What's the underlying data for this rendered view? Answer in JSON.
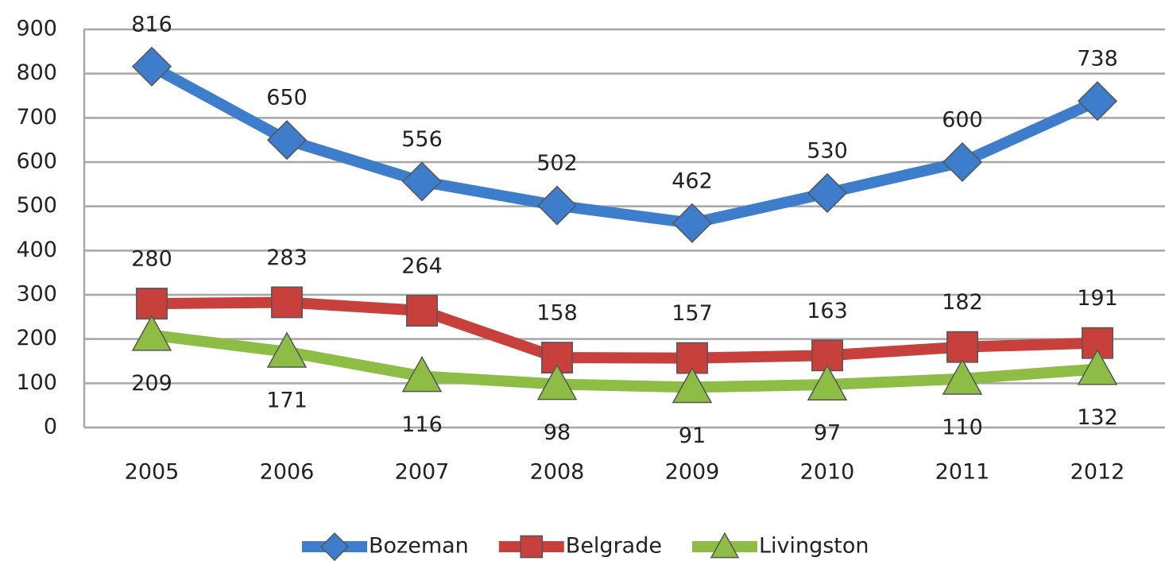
{
  "chart_data": {
    "type": "line",
    "categories": [
      "2005",
      "2006",
      "2007",
      "2008",
      "2009",
      "2010",
      "2011",
      "2012"
    ],
    "series": [
      {
        "name": "Bozeman",
        "color": "#3d7dcc",
        "marker": "diamond",
        "values": [
          816,
          650,
          556,
          502,
          462,
          530,
          600,
          738
        ]
      },
      {
        "name": "Belgrade",
        "color": "#c8403b",
        "marker": "square",
        "values": [
          280,
          283,
          264,
          158,
          157,
          163,
          182,
          191
        ]
      },
      {
        "name": "Livingston",
        "color": "#8dbd45",
        "marker": "triangle",
        "values": [
          209,
          171,
          116,
          98,
          91,
          97,
          110,
          132
        ]
      }
    ],
    "ylim": [
      0,
      900
    ],
    "yticks": [
      0,
      100,
      200,
      300,
      400,
      500,
      600,
      700,
      800,
      900
    ],
    "grid": true,
    "legend": "bottom",
    "data_labels": true
  }
}
